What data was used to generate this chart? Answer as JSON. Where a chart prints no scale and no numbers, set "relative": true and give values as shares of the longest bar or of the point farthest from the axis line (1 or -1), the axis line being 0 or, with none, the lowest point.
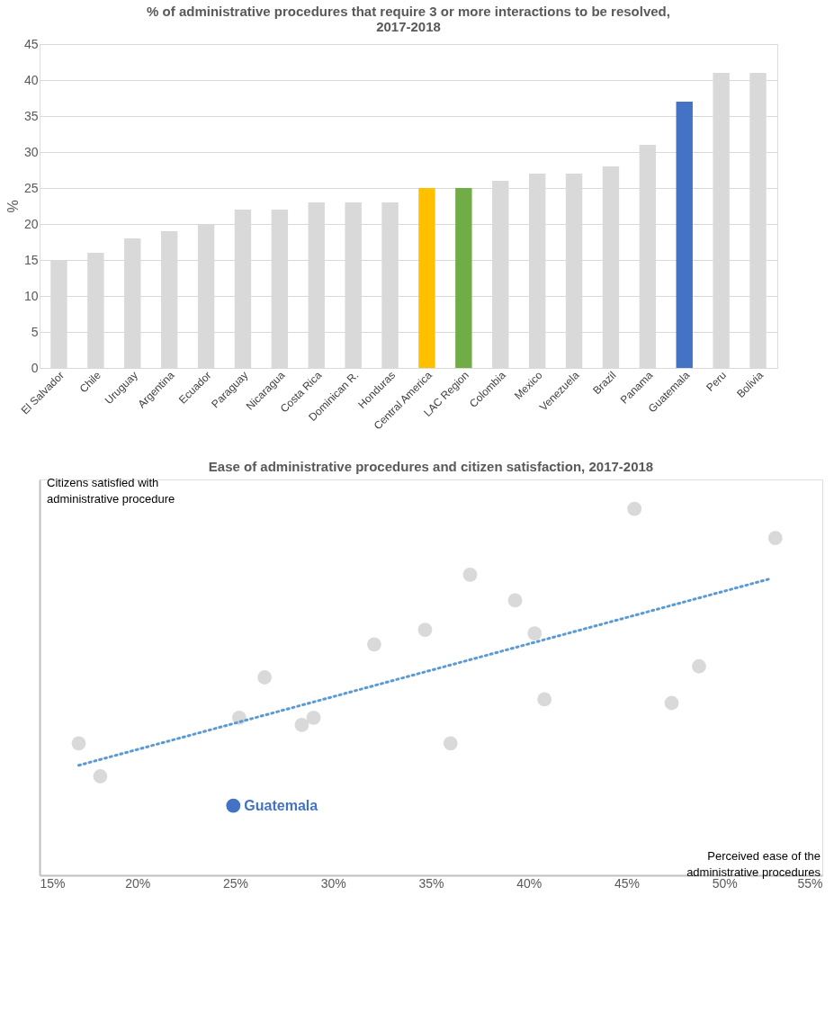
{
  "chart_data": [
    {
      "type": "bar",
      "title": "% of administrative procedures that require 3 or more interactions to be resolved, 2017-2018",
      "ylabel": "%",
      "categories": [
        "El Salvador",
        "Chile",
        "Uruguay",
        "Argentina",
        "Ecuador",
        "Paraguay",
        "Nicaragua",
        "Costa Rica",
        "Dominican R.",
        "Honduras",
        "Central America",
        "LAC Region",
        "Colombia",
        "Mexico",
        "Venezuela",
        "Brazil",
        "Panama",
        "Guatemala",
        "Peru",
        "Bolivia"
      ],
      "values": [
        15,
        16,
        18,
        19,
        20,
        22,
        22,
        23,
        23,
        23,
        25,
        25,
        26,
        27,
        27,
        28,
        31,
        37,
        41,
        41
      ],
      "colors": [
        "#d9d9d9",
        "#d9d9d9",
        "#d9d9d9",
        "#d9d9d9",
        "#d9d9d9",
        "#d9d9d9",
        "#d9d9d9",
        "#d9d9d9",
        "#d9d9d9",
        "#d9d9d9",
        "#ffc000",
        "#70ad47",
        "#d9d9d9",
        "#d9d9d9",
        "#d9d9d9",
        "#d9d9d9",
        "#d9d9d9",
        "#4472c4",
        "#d9d9d9",
        "#d9d9d9"
      ],
      "ylim": [
        0,
        45
      ],
      "yticks": [
        0,
        5,
        10,
        15,
        20,
        25,
        30,
        35,
        40,
        45
      ],
      "grid": "y"
    },
    {
      "type": "scatter",
      "title": "Ease of administrative procedures and citizen satisfaction, 2017-2018",
      "xlabel": "Perceived ease of the administrative procedures",
      "ylabel": "Citizens satisfied with administrative procedure",
      "relative": true,
      "xlim": [
        15,
        55
      ],
      "xticks": [
        {
          "value": 15,
          "label": "15%"
        },
        {
          "value": 20,
          "label": "20%"
        },
        {
          "value": 25,
          "label": "25%"
        },
        {
          "value": 30,
          "label": "30%"
        },
        {
          "value": 35,
          "label": "35%"
        },
        {
          "value": 40,
          "label": "40%"
        },
        {
          "value": 45,
          "label": "45%"
        },
        {
          "value": 50,
          "label": "50%"
        },
        {
          "value": 55,
          "label": "55%"
        }
      ],
      "series": [
        {
          "color": "#d9d9d9",
          "marker": "circle",
          "x": [
            17.0,
            18.1,
            25.2,
            26.5,
            28.4,
            29.0,
            32.1,
            34.7,
            36.0,
            37.0,
            39.3,
            40.3,
            40.8,
            45.4,
            47.3,
            48.7,
            52.6
          ],
          "values": [
            0.36,
            0.27,
            0.43,
            0.54,
            0.41,
            0.43,
            0.63,
            0.67,
            0.36,
            0.82,
            0.75,
            0.66,
            0.48,
            1.0,
            0.47,
            0.57,
            0.92
          ]
        },
        {
          "name": "Guatemala",
          "color": "#4472c4",
          "marker": "circle",
          "x": [
            24.9
          ],
          "values": [
            0.19
          ]
        },
        {
          "type": "line",
          "marker": "none",
          "line_style": "dotted",
          "color": "#5b9bd5",
          "x": [
            17.0,
            52.4
          ],
          "values": [
            0.3,
            0.81
          ]
        }
      ]
    }
  ]
}
